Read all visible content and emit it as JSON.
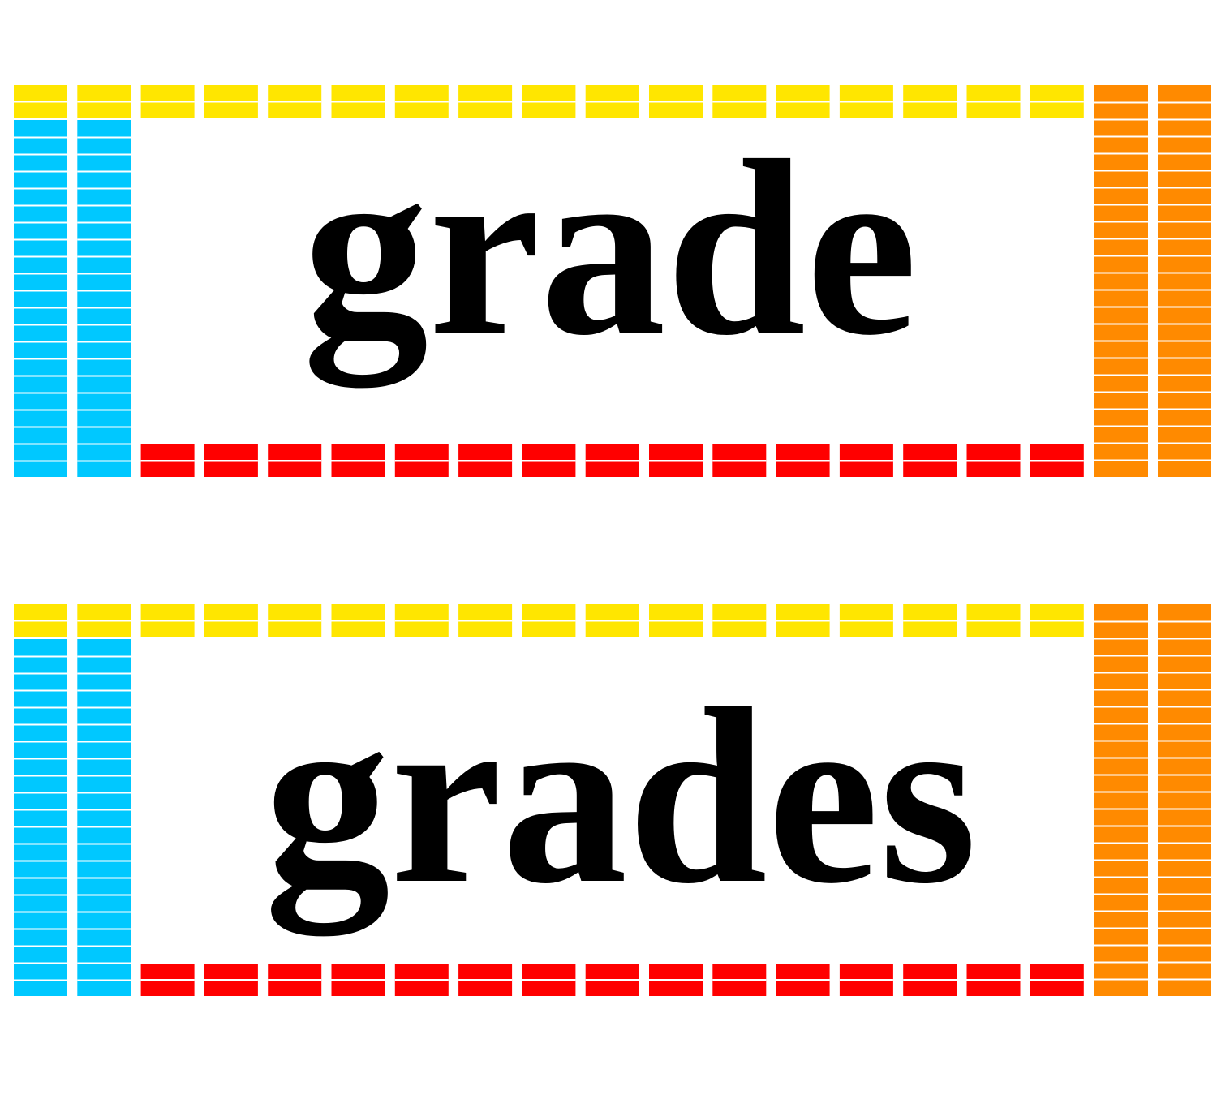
{
  "cards": [
    {
      "word": "grade"
    },
    {
      "word": "grades"
    }
  ]
}
